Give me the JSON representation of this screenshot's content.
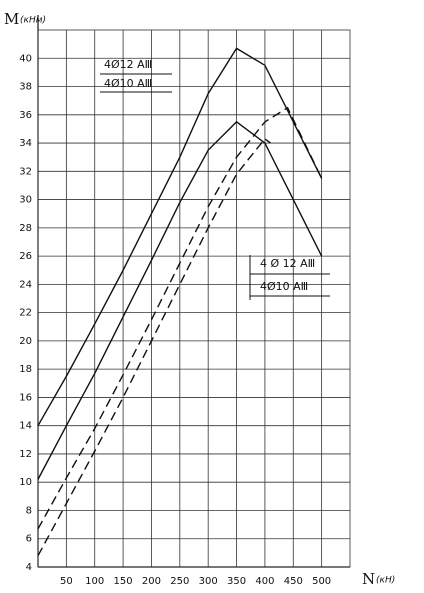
{
  "chart_data": {
    "type": "line",
    "y_label": "M",
    "y_unit": "(кНм)",
    "x_label": "N",
    "x_unit": "(кН)",
    "xlim": [
      0,
      550
    ],
    "ylim": [
      4,
      42
    ],
    "xticks": [
      50,
      100,
      150,
      200,
      250,
      300,
      350,
      400,
      450,
      500
    ],
    "yticks": [
      4,
      6,
      8,
      10,
      12,
      14,
      16,
      18,
      20,
      22,
      24,
      26,
      28,
      30,
      32,
      34,
      36,
      38,
      40
    ],
    "grid": true,
    "series": [
      {
        "name": "4Ø12 AⅢ",
        "color": "#111111",
        "style": "solid",
        "x": [
          0,
          50,
          100,
          150,
          200,
          250,
          300,
          350,
          400,
          450,
          500
        ],
        "values": [
          14,
          17.5,
          21.2,
          25,
          29,
          33,
          37.5,
          40.7,
          39.5,
          35.5,
          31.5
        ]
      },
      {
        "name": "4Ø10 AⅢ",
        "color": "#111111",
        "style": "solid",
        "x": [
          0,
          50,
          100,
          150,
          200,
          250,
          300,
          350,
          400,
          450,
          500
        ],
        "values": [
          10.2,
          14,
          17.7,
          21.7,
          25.7,
          29.8,
          33.5,
          35.5,
          34,
          30,
          26
        ]
      },
      {
        "name": "4 Ø 12 AⅢ",
        "color": "#111111",
        "style": "dashed",
        "x": [
          0,
          50,
          100,
          150,
          200,
          250,
          300,
          350,
          400,
          440,
          500
        ],
        "values": [
          6.7,
          10.3,
          13.8,
          17.6,
          21.5,
          25.5,
          29.5,
          33,
          35.5,
          36.5,
          31.5
        ]
      },
      {
        "name": "4Ø10 AⅢ",
        "color": "#111111",
        "style": "dashed",
        "x": [
          0,
          50,
          100,
          150,
          200,
          250,
          300,
          350,
          400,
          410
        ],
        "values": [
          4.8,
          8.5,
          12.2,
          16,
          20,
          24,
          28,
          31.8,
          34.3,
          34
        ]
      }
    ]
  }
}
